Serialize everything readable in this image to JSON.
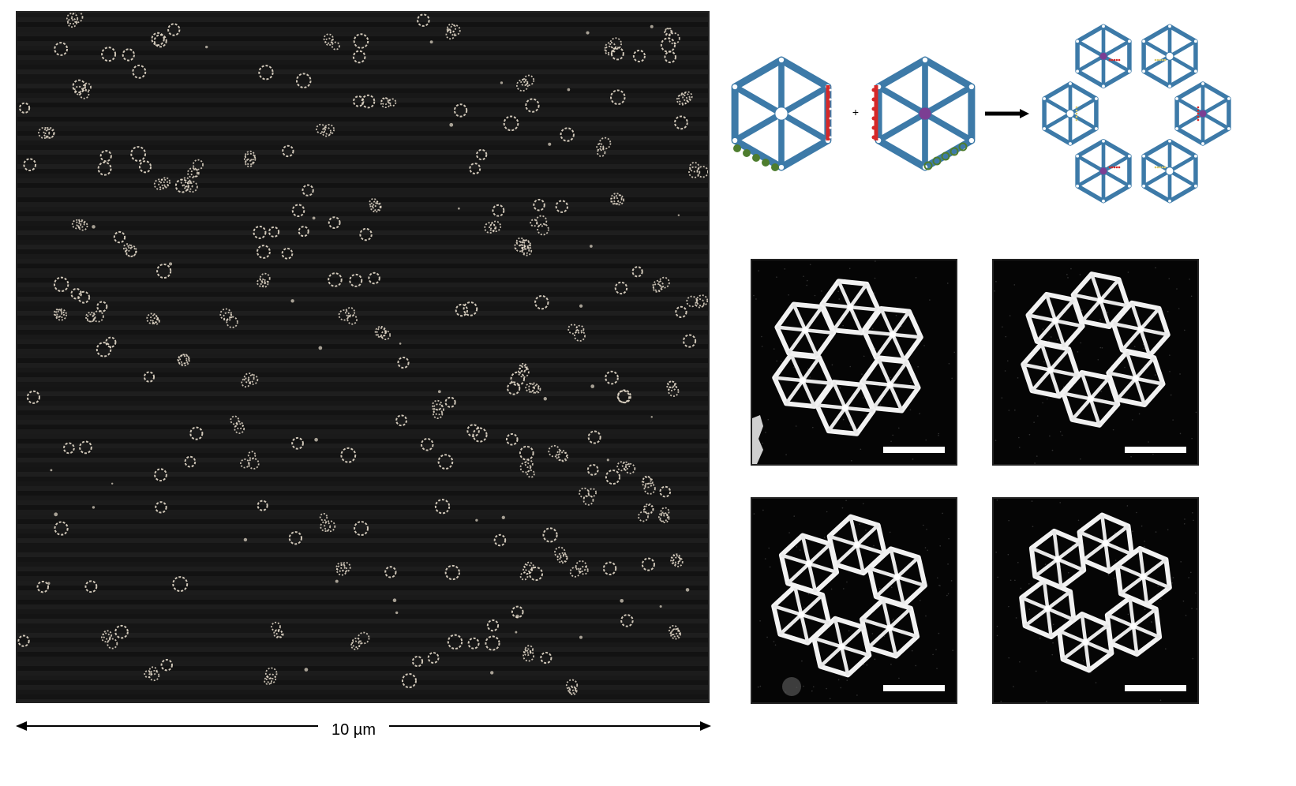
{
  "schematic": {
    "plus": "+",
    "colors": {
      "strut": "#3D7AA8",
      "center_a": "#ffffff",
      "center_b": "#7C3E93",
      "red_connector": "#D62828",
      "green_connector": "#4E7D2E"
    }
  },
  "overview": {
    "scale_label": "10 µm",
    "background": "#141414",
    "particle_color": "#E6DCCB"
  },
  "afm_tiles": [
    {
      "id": "tile-1",
      "has_scale_bar": true
    },
    {
      "id": "tile-2",
      "has_scale_bar": true
    },
    {
      "id": "tile-3",
      "has_scale_bar": true
    },
    {
      "id": "tile-4",
      "has_scale_bar": true
    }
  ]
}
